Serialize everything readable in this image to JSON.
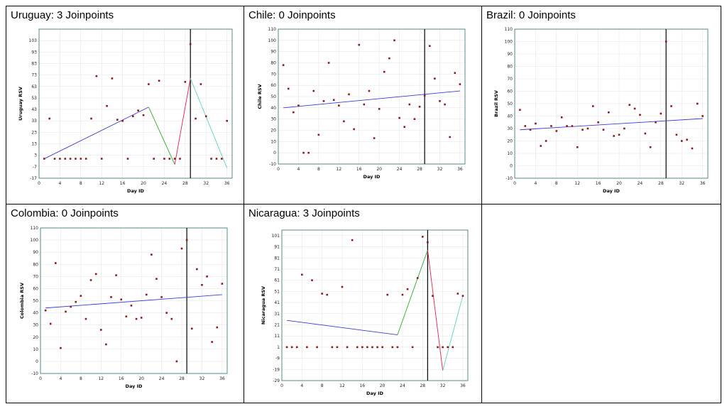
{
  "panels": [
    {
      "title": "Uruguay: 3 Joinpoints"
    },
    {
      "title": "Chile: 0 Joinpoints"
    },
    {
      "title": "Brazil: 0 Joinpoints"
    },
    {
      "title": "Colombia: 0 Joinpoints"
    },
    {
      "title": "Nicaragua: 3 Joinpoints"
    }
  ],
  "colors": {
    "point": "#8b1a1a",
    "vline": "#000000",
    "frame": "#2f6f6f",
    "grid": "#e6e6e6",
    "seg1": "#3b3bd6",
    "seg2": "#2eaa2e",
    "seg3": "#e0204a",
    "seg4": "#5fd0c0"
  },
  "chart_data": [
    {
      "type": "scatter",
      "title": "Uruguay: 3 Joinpoints",
      "xlabel": "Day ID",
      "ylabel": "Uruguay RSV",
      "xlim": [
        0,
        37
      ],
      "ylim": [
        -17,
        113
      ],
      "xticks": [
        0,
        4,
        8,
        12,
        16,
        20,
        24,
        28,
        32,
        36
      ],
      "yticks": [
        -17,
        -7,
        3,
        13,
        23,
        33,
        43,
        53,
        63,
        73,
        83,
        93,
        103
      ],
      "vline": 29,
      "points": [
        [
          1,
          0
        ],
        [
          2,
          35
        ],
        [
          3,
          0
        ],
        [
          4,
          0
        ],
        [
          5,
          0
        ],
        [
          6,
          0
        ],
        [
          7,
          0
        ],
        [
          8,
          0
        ],
        [
          9,
          0
        ],
        [
          10,
          35
        ],
        [
          11,
          72
        ],
        [
          12,
          0
        ],
        [
          13,
          46
        ],
        [
          14,
          70
        ],
        [
          15,
          34
        ],
        [
          16,
          33
        ],
        [
          17,
          0
        ],
        [
          18,
          37
        ],
        [
          19,
          42
        ],
        [
          20,
          38
        ],
        [
          21,
          65
        ],
        [
          22,
          0
        ],
        [
          23,
          68
        ],
        [
          24,
          0
        ],
        [
          25,
          0
        ],
        [
          26,
          0
        ],
        [
          27,
          0
        ],
        [
          28,
          67
        ],
        [
          29,
          100
        ],
        [
          30,
          35
        ],
        [
          31,
          65
        ],
        [
          32,
          37
        ],
        [
          33,
          0
        ],
        [
          34,
          0
        ],
        [
          35,
          0
        ],
        [
          36,
          33
        ]
      ],
      "fit": [
        [
          1,
          0
        ],
        [
          21,
          45
        ],
        [
          26,
          -5
        ],
        [
          29,
          70
        ],
        [
          36,
          -8
        ]
      ]
    },
    {
      "type": "scatter",
      "title": "Chile: 0 Joinpoints",
      "xlabel": "Day ID",
      "ylabel": "Chile RSV",
      "xlim": [
        0,
        37
      ],
      "ylim": [
        -10,
        110
      ],
      "xticks": [
        0,
        4,
        8,
        12,
        16,
        20,
        24,
        28,
        32,
        36
      ],
      "yticks": [
        -10,
        0,
        10,
        20,
        30,
        40,
        50,
        60,
        70,
        80,
        90,
        100,
        110
      ],
      "vline": 29,
      "points": [
        [
          1,
          78
        ],
        [
          2,
          57
        ],
        [
          3,
          36
        ],
        [
          4,
          42
        ],
        [
          5,
          0
        ],
        [
          6,
          0
        ],
        [
          7,
          55
        ],
        [
          8,
          16
        ],
        [
          9,
          46
        ],
        [
          10,
          80
        ],
        [
          11,
          47
        ],
        [
          12,
          42
        ],
        [
          13,
          28
        ],
        [
          14,
          52
        ],
        [
          15,
          21
        ],
        [
          16,
          96
        ],
        [
          17,
          43
        ],
        [
          18,
          55
        ],
        [
          19,
          13
        ],
        [
          20,
          39
        ],
        [
          21,
          72
        ],
        [
          22,
          84
        ],
        [
          23,
          100
        ],
        [
          24,
          31
        ],
        [
          25,
          23
        ],
        [
          26,
          43
        ],
        [
          27,
          30
        ],
        [
          28,
          41
        ],
        [
          29,
          51
        ],
        [
          30,
          95
        ],
        [
          31,
          66
        ],
        [
          32,
          46
        ],
        [
          33,
          43
        ],
        [
          34,
          14
        ],
        [
          35,
          71
        ],
        [
          36,
          61
        ]
      ],
      "fit": [
        [
          1,
          40
        ],
        [
          36,
          55
        ]
      ]
    },
    {
      "type": "scatter",
      "title": "Brazil: 0 Joinpoints",
      "xlabel": "Day ID",
      "ylabel": "Brazil RSV",
      "xlim": [
        0,
        37
      ],
      "ylim": [
        -10,
        110
      ],
      "xticks": [
        0,
        4,
        8,
        12,
        16,
        20,
        24,
        28,
        32,
        36
      ],
      "yticks": [
        -10,
        0,
        10,
        20,
        30,
        40,
        50,
        60,
        70,
        80,
        90,
        100,
        110
      ],
      "vline": 29,
      "points": [
        [
          1,
          45
        ],
        [
          2,
          32
        ],
        [
          3,
          29
        ],
        [
          4,
          34
        ],
        [
          5,
          16
        ],
        [
          6,
          20
        ],
        [
          7,
          32
        ],
        [
          8,
          28
        ],
        [
          9,
          39
        ],
        [
          10,
          32
        ],
        [
          11,
          32
        ],
        [
          12,
          15
        ],
        [
          13,
          29
        ],
        [
          14,
          30
        ],
        [
          15,
          48
        ],
        [
          16,
          35
        ],
        [
          17,
          29
        ],
        [
          18,
          43
        ],
        [
          19,
          24
        ],
        [
          20,
          25
        ],
        [
          21,
          30
        ],
        [
          22,
          49
        ],
        [
          23,
          46
        ],
        [
          24,
          41
        ],
        [
          25,
          26
        ],
        [
          26,
          15
        ],
        [
          27,
          35
        ],
        [
          28,
          42
        ],
        [
          29,
          100
        ],
        [
          30,
          48
        ],
        [
          31,
          25
        ],
        [
          32,
          20
        ],
        [
          33,
          21
        ],
        [
          34,
          14
        ],
        [
          35,
          50
        ],
        [
          36,
          40
        ]
      ],
      "fit": [
        [
          1,
          29
        ],
        [
          36,
          38
        ]
      ]
    },
    {
      "type": "scatter",
      "title": "Colombia: 0 Joinpoints",
      "xlabel": "Day ID",
      "ylabel": "Colombia RSV",
      "xlim": [
        0,
        37
      ],
      "ylim": [
        -10,
        110
      ],
      "xticks": [
        0,
        4,
        8,
        12,
        16,
        20,
        24,
        28,
        32,
        36
      ],
      "yticks": [
        -10,
        0,
        10,
        20,
        30,
        40,
        50,
        60,
        70,
        80,
        90,
        100,
        110
      ],
      "vline": 29,
      "points": [
        [
          1,
          42
        ],
        [
          2,
          31
        ],
        [
          3,
          81
        ],
        [
          4,
          11
        ],
        [
          5,
          41
        ],
        [
          6,
          45
        ],
        [
          7,
          49
        ],
        [
          8,
          54
        ],
        [
          9,
          35
        ],
        [
          10,
          67
        ],
        [
          11,
          72
        ],
        [
          12,
          26
        ],
        [
          13,
          14
        ],
        [
          14,
          53
        ],
        [
          15,
          71
        ],
        [
          16,
          51
        ],
        [
          17,
          37
        ],
        [
          18,
          46
        ],
        [
          19,
          35
        ],
        [
          20,
          36
        ],
        [
          21,
          55
        ],
        [
          22,
          88
        ],
        [
          23,
          68
        ],
        [
          24,
          53
        ],
        [
          25,
          40
        ],
        [
          26,
          35
        ],
        [
          27,
          0
        ],
        [
          28,
          93
        ],
        [
          29,
          100
        ],
        [
          30,
          27
        ],
        [
          31,
          76
        ],
        [
          32,
          63
        ],
        [
          33,
          70
        ],
        [
          34,
          16
        ],
        [
          35,
          28
        ],
        [
          36,
          64
        ]
      ],
      "fit": [
        [
          1,
          44
        ],
        [
          36,
          55
        ]
      ]
    },
    {
      "type": "scatter",
      "title": "Nicaragua: 3 Joinpoints",
      "xlabel": "Day ID",
      "ylabel": "Nicaragua RSV",
      "xlim": [
        0,
        37
      ],
      "ylim": [
        -29,
        106
      ],
      "xticks": [
        0,
        4,
        8,
        12,
        16,
        20,
        24,
        28,
        32,
        36
      ],
      "yticks": [
        -29,
        -19,
        -9,
        1,
        11,
        21,
        31,
        41,
        51,
        61,
        71,
        81,
        91,
        101
      ],
      "vline": 29,
      "points": [
        [
          1,
          1
        ],
        [
          2,
          1
        ],
        [
          3,
          1
        ],
        [
          4,
          66
        ],
        [
          5,
          1
        ],
        [
          6,
          61
        ],
        [
          7,
          1
        ],
        [
          8,
          49
        ],
        [
          9,
          48
        ],
        [
          10,
          1
        ],
        [
          11,
          1
        ],
        [
          12,
          55
        ],
        [
          13,
          1
        ],
        [
          14,
          97
        ],
        [
          15,
          1
        ],
        [
          16,
          1
        ],
        [
          17,
          1
        ],
        [
          18,
          1
        ],
        [
          19,
          1
        ],
        [
          20,
          1
        ],
        [
          21,
          48
        ],
        [
          22,
          1
        ],
        [
          23,
          1
        ],
        [
          24,
          48
        ],
        [
          25,
          53
        ],
        [
          26,
          1
        ],
        [
          27,
          63
        ],
        [
          28,
          100
        ],
        [
          29,
          95
        ],
        [
          30,
          47
        ],
        [
          31,
          1
        ],
        [
          32,
          1
        ],
        [
          33,
          1
        ],
        [
          34,
          1
        ],
        [
          35,
          49
        ],
        [
          36,
          47
        ]
      ],
      "fit": [
        [
          1,
          25
        ],
        [
          23,
          12
        ],
        [
          29,
          88
        ],
        [
          32,
          -20
        ],
        [
          36,
          47
        ]
      ]
    }
  ]
}
